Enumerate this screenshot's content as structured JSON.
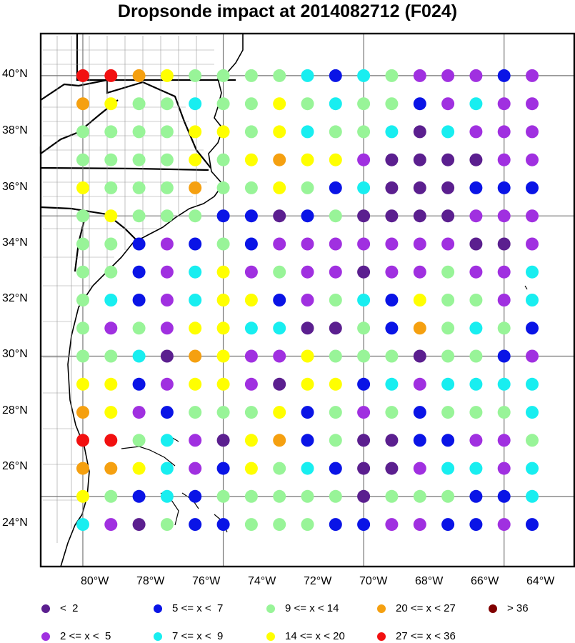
{
  "title": "Dropsonde impact at 2014082712 (F024)",
  "map": {
    "lat_labels": [
      "40°N",
      "38°N",
      "36°N",
      "34°N",
      "32°N",
      "30°N",
      "28°N",
      "26°N",
      "24°N"
    ],
    "lon_labels": [
      "80°W",
      "78°W",
      "76°W",
      "74°W",
      "72°W",
      "70°W",
      "68°W",
      "66°W",
      "64°W"
    ],
    "grid_lons": [
      -80,
      -75,
      -70,
      -65
    ],
    "grid_lats": [
      25,
      30,
      35,
      40
    ],
    "land_color": "#ffffff",
    "border_color": "#000000"
  },
  "legend": [
    {
      "label": "<  2",
      "color": "#5b1f8f",
      "category": 0
    },
    {
      "label": "2 <= x <  5",
      "color": "#a030e0",
      "category": 1
    },
    {
      "label": "5 <= x <  7",
      "color": "#0a14e6",
      "category": 2
    },
    {
      "label": "7 <= x <  9",
      "color": "#18eef0",
      "category": 3
    },
    {
      "label": "9 <= x < 14",
      "color": "#98f498",
      "category": 4
    },
    {
      "label": "14 <= x < 20",
      "color": "#ffff00",
      "category": 5
    },
    {
      "label": "20 <= x < 27",
      "color": "#f5a010",
      "category": 6
    },
    {
      "label": "27 <= x < 36",
      "color": "#f21010",
      "category": 7
    },
    {
      "label": "> 36",
      "color": "#800000",
      "category": 8
    }
  ],
  "chart_data": {
    "type": "scatter",
    "title": "Dropsonde impact at 2014082712 (F024)",
    "description_of_values": "category index of dropsonde impact per 1-degree grid point (0..8 matching legend bins)",
    "lats": [
      40,
      39,
      38,
      37,
      36,
      35,
      34,
      33,
      32,
      31,
      30,
      29,
      28,
      27,
      26,
      25,
      24
    ],
    "lons": [
      -80,
      -79,
      -78,
      -77,
      -76,
      -75,
      -74,
      -73,
      -72,
      -71,
      -70,
      -69,
      -68,
      -67,
      -66,
      -65,
      -64
    ],
    "grid": [
      [
        7,
        7,
        6,
        5,
        4,
        4,
        4,
        4,
        3,
        2,
        3,
        4,
        1,
        1,
        1,
        2,
        1
      ],
      [
        6,
        5,
        4,
        4,
        3,
        4,
        4,
        5,
        4,
        3,
        4,
        4,
        2,
        1,
        3,
        1,
        1
      ],
      [
        4,
        4,
        4,
        4,
        5,
        5,
        4,
        5,
        3,
        4,
        4,
        3,
        0,
        3,
        1,
        1,
        1
      ],
      [
        4,
        4,
        4,
        4,
        5,
        4,
        5,
        6,
        5,
        5,
        1,
        0,
        0,
        0,
        0,
        1,
        1
      ],
      [
        5,
        4,
        4,
        4,
        6,
        4,
        4,
        5,
        4,
        2,
        3,
        0,
        0,
        0,
        2,
        2,
        2
      ],
      [
        4,
        5,
        4,
        4,
        4,
        2,
        2,
        0,
        2,
        4,
        0,
        0,
        0,
        0,
        1,
        1,
        1
      ],
      [
        4,
        4,
        2,
        1,
        2,
        4,
        2,
        1,
        1,
        1,
        1,
        1,
        1,
        1,
        0,
        0,
        1
      ],
      [
        4,
        4,
        2,
        1,
        3,
        5,
        1,
        4,
        1,
        1,
        0,
        1,
        1,
        4,
        1,
        1,
        3
      ],
      [
        4,
        3,
        2,
        1,
        3,
        5,
        5,
        2,
        1,
        4,
        3,
        2,
        5,
        4,
        4,
        1,
        3
      ],
      [
        4,
        1,
        4,
        1,
        5,
        5,
        3,
        3,
        0,
        0,
        4,
        2,
        6,
        4,
        3,
        4,
        2
      ],
      [
        4,
        4,
        3,
        0,
        6,
        5,
        1,
        1,
        5,
        4,
        4,
        4,
        0,
        4,
        4,
        2,
        1
      ],
      [
        5,
        5,
        2,
        1,
        5,
        5,
        1,
        0,
        5,
        5,
        2,
        3,
        1,
        3,
        3,
        3,
        3
      ],
      [
        6,
        5,
        1,
        2,
        4,
        4,
        4,
        5,
        2,
        4,
        1,
        4,
        2,
        4,
        4,
        4,
        3
      ],
      [
        7,
        7,
        4,
        3,
        1,
        0,
        5,
        6,
        2,
        4,
        0,
        0,
        2,
        2,
        1,
        1,
        4
      ],
      [
        6,
        6,
        5,
        3,
        1,
        2,
        5,
        4,
        3,
        2,
        0,
        0,
        1,
        3,
        3,
        1,
        3
      ],
      [
        5,
        4,
        2,
        3,
        2,
        4,
        4,
        4,
        4,
        4,
        0,
        4,
        4,
        4,
        2,
        2,
        3
      ],
      [
        3,
        1,
        0,
        4,
        2,
        2,
        4,
        4,
        4,
        2,
        2,
        1,
        1,
        2,
        2,
        1,
        2
      ]
    ]
  }
}
